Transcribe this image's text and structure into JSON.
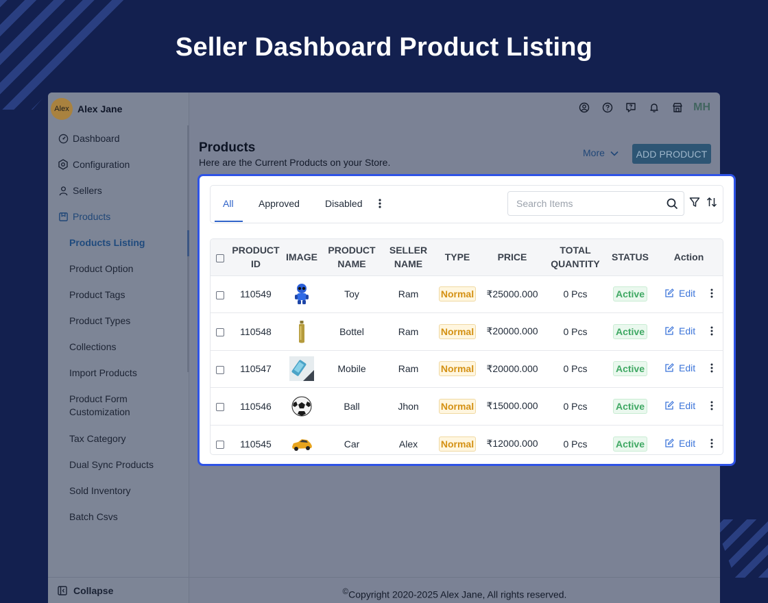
{
  "hero": {
    "title": "Seller Dashboard Product Listing"
  },
  "user": {
    "avatar_text": "Alex",
    "name": "Alex Jane"
  },
  "sidebar": {
    "items": [
      {
        "label": "Dashboard",
        "icon": "dashboard-icon"
      },
      {
        "label": "Configuration",
        "icon": "settings-hex-icon"
      },
      {
        "label": "Sellers",
        "icon": "user-icon"
      },
      {
        "label": "Products",
        "icon": "product-box-icon"
      }
    ],
    "sub_items": [
      "Products Listing",
      "Product Option",
      "Product Tags",
      "Product Types",
      "Collections",
      "Import Products",
      "Product Form Customization",
      "Tax Category",
      "Dual Sync Products",
      "Sold Inventory",
      "Batch Csvs"
    ],
    "collapse_label": "Collapse"
  },
  "topbar": {
    "icons": [
      "user-circle-icon",
      "help-circle-icon",
      "chat-question-icon",
      "bell-icon",
      "store-icon"
    ],
    "initials": "MH"
  },
  "page": {
    "title": "Products",
    "subtitle": "Here are the Current Products on your Store.",
    "more_label": "More",
    "add_label": "ADD PRODUCT"
  },
  "tabs": [
    {
      "label": "All",
      "active": true
    },
    {
      "label": "Approved",
      "active": false
    },
    {
      "label": "Disabled",
      "active": false
    }
  ],
  "search": {
    "placeholder": "Search Items",
    "value": ""
  },
  "table": {
    "headers": {
      "product_id": "PRODUCT ID",
      "image": "IMAGE",
      "product_name": "PRODUCT NAME",
      "seller_name": "SELLER NAME",
      "type": "TYPE",
      "price": "PRICE",
      "total_quantity": "TOTAL QUANTITY",
      "status": "STATUS",
      "action": "Action"
    },
    "rows": [
      {
        "id": "110549",
        "image": "robot-toy-image",
        "name": "Toy",
        "seller": "Ram",
        "type": "Normal",
        "price": "₹25000.000",
        "qty": "0 Pcs",
        "status": "Active",
        "edit": "Edit"
      },
      {
        "id": "110548",
        "image": "bottle-image",
        "name": "Bottel",
        "seller": "Ram",
        "type": "Normal",
        "price": "₹20000.000",
        "qty": "0 Pcs",
        "status": "Active",
        "edit": "Edit"
      },
      {
        "id": "110547",
        "image": "mobile-image",
        "name": "Mobile",
        "seller": "Ram",
        "type": "Normal",
        "price": "₹20000.000",
        "qty": "0 Pcs",
        "status": "Active",
        "edit": "Edit"
      },
      {
        "id": "110546",
        "image": "football-image",
        "name": "Ball",
        "seller": "Jhon",
        "type": "Normal",
        "price": "₹15000.000",
        "qty": "0 Pcs",
        "status": "Active",
        "edit": "Edit"
      },
      {
        "id": "110545",
        "image": "toy-car-image",
        "name": "Car",
        "seller": "Alex",
        "type": "Normal",
        "price": "₹12000.000",
        "qty": "0 Pcs",
        "status": "Active",
        "edit": "Edit"
      }
    ]
  },
  "footer": {
    "copyright_symbol": "©",
    "text": "Copyright 2020-2025 Alex Jane, All rights reserved."
  },
  "colors": {
    "background": "#13204f",
    "highlight_border": "#2e53e6",
    "accent_blue": "#2f63c9",
    "type_badge": "#d49114",
    "status_badge": "#3fa863",
    "add_button": "#2d5574"
  }
}
